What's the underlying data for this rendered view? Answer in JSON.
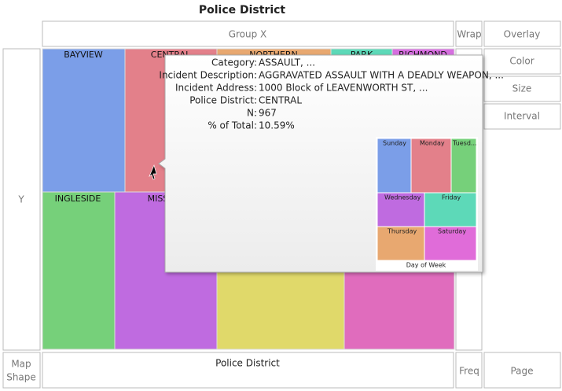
{
  "title": "Police District",
  "zones": {
    "group_x": "Group X",
    "wrap": "Wrap",
    "overlay": "Overlay",
    "color": "Color",
    "size": "Size",
    "interval": "Interval",
    "y": "Y",
    "map_shape": [
      "Map",
      "Shape"
    ],
    "x_axis": "Police District",
    "freq": "Freq",
    "page": "Page"
  },
  "treemap": {
    "tiles": [
      "BAYVIEW",
      "CENTRAL",
      "NORTHERN",
      "PARK",
      "RICHMOND",
      "INGLESIDE",
      "MISSION"
    ]
  },
  "tooltip": {
    "rows": [
      {
        "label": "Category:",
        "value": "ASSAULT, ..."
      },
      {
        "label": "Incident Description:",
        "value": "AGGRAVATED ASSAULT WITH A DEADLY WEAPON, ..."
      },
      {
        "label": "Incident Address:",
        "value": "1000 Block of LEAVENWORTH ST, ..."
      },
      {
        "label": "Police District:",
        "value": "CENTRAL"
      },
      {
        "label": "N:",
        "value": "967"
      },
      {
        "label": "% of Total:",
        "value": "10.59%"
      }
    ],
    "mini_treemap": {
      "tiles": [
        "Sunday",
        "Monday",
        "Tuesd...",
        "Wednesday",
        "Friday",
        "Thursday",
        "Saturday"
      ],
      "axis_label": "Day of Week"
    }
  }
}
